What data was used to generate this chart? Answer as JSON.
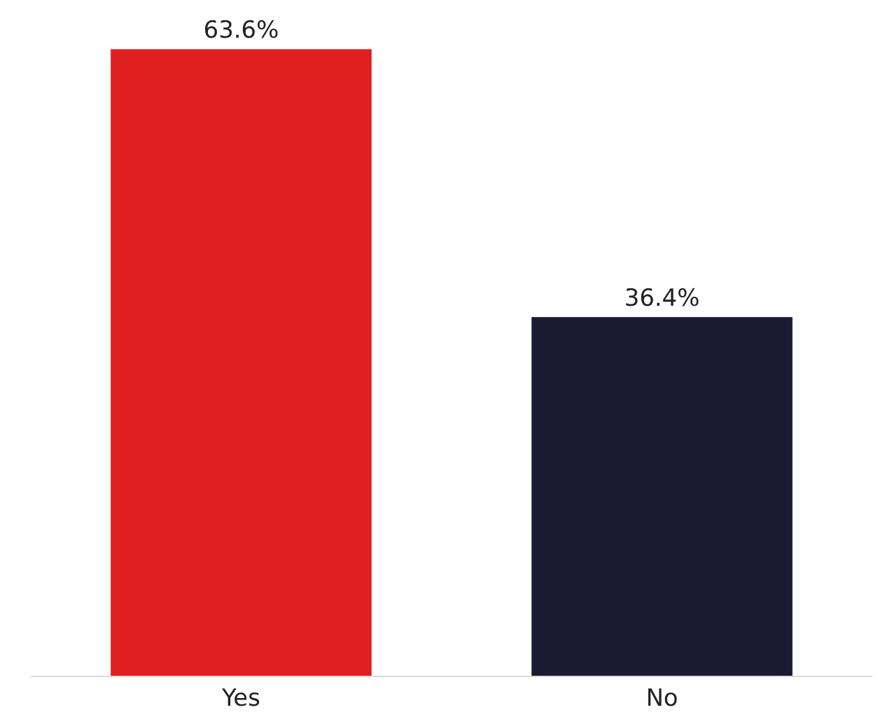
{
  "chart_data": {
    "type": "bar",
    "categories": [
      "Yes",
      "No"
    ],
    "values": [
      63.6,
      36.4
    ],
    "colors": [
      "#e01f20",
      "#1a1a33"
    ],
    "value_labels": [
      "63.6%",
      "36.4%"
    ]
  }
}
